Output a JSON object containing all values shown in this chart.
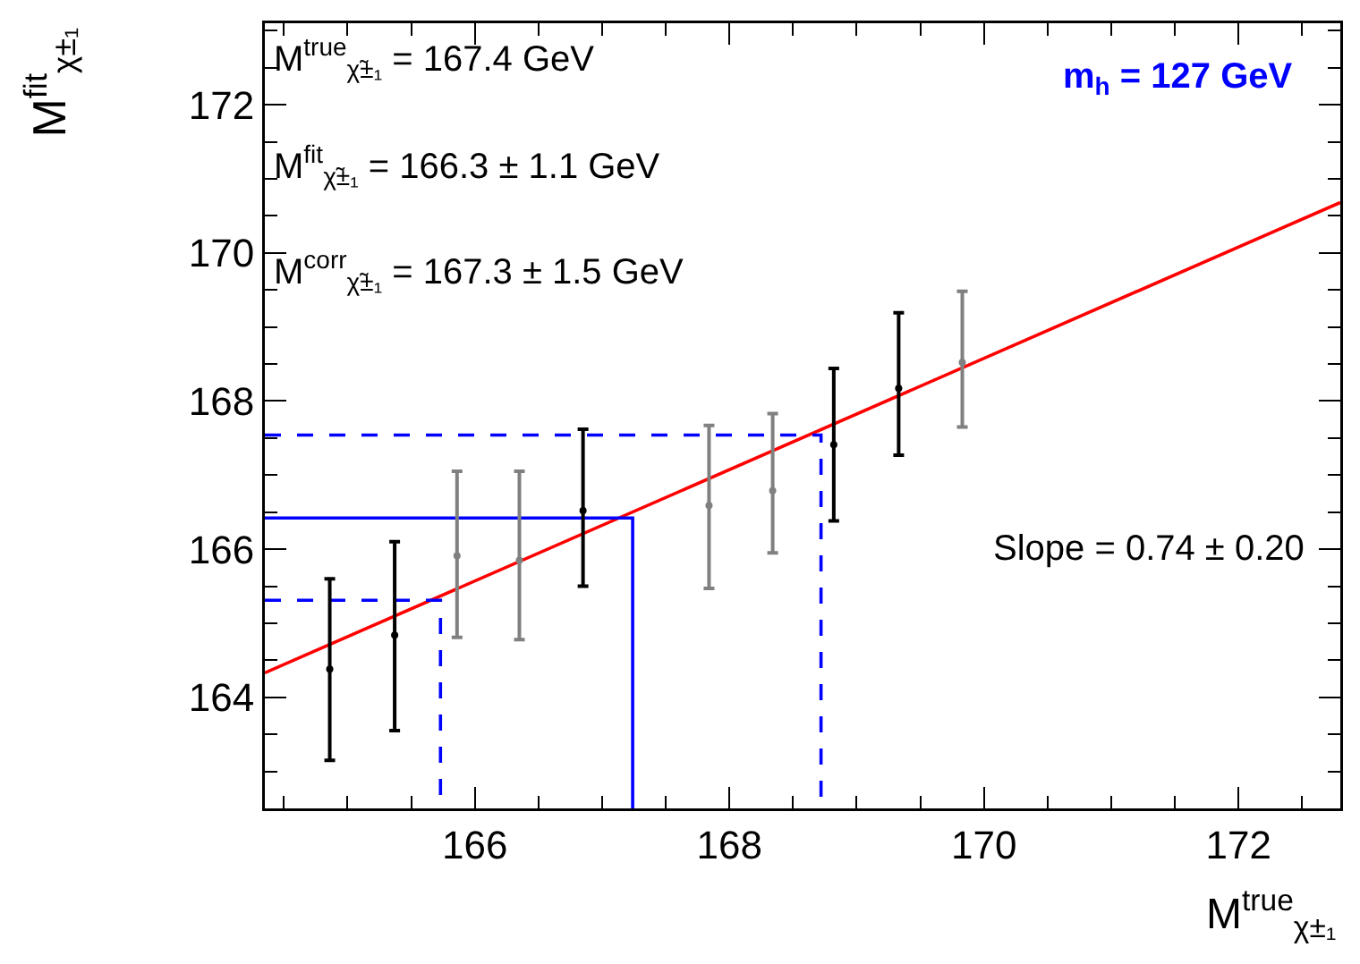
{
  "chart_data": {
    "type": "scatter",
    "xlabel": "M$^{true}$$_{χ±₁}$",
    "ylabel": "M$^{fit}$$_{χ±₁}$",
    "xlim": [
      164.35,
      172.8
    ],
    "ylim": [
      162.5,
      173.1
    ],
    "xticks": [
      166,
      168,
      170,
      172
    ],
    "yticks": [
      164,
      166,
      168,
      170,
      172
    ],
    "grid": false,
    "marker": "circle",
    "annotations": [
      "M$^{true}$$_{χ̃±₁}$ = 167.4 GeV",
      "M$^{fit}$$_{χ̃±₁}$ = 166.3 ± 1.1 GeV",
      "M$^{corr}$$_{χ̃±₁}$ = 167.3 ± 1.5 GeV",
      "m$_{h}$ = 127 GeV",
      "Slope = 0.74 ± 0.20"
    ],
    "series": [
      {
        "type": "line",
        "marker": "none",
        "color": "#ff0000",
        "line_style": "solid",
        "x": [
          164.35,
          172.8
        ],
        "values": [
          164.33,
          170.68
        ]
      },
      {
        "type": "line",
        "marker": "none",
        "color": "#0000ff",
        "line_style": "solid",
        "x": [
          164.35,
          167.24,
          167.24
        ],
        "values": [
          166.42,
          166.42,
          162.5
        ]
      },
      {
        "type": "line",
        "marker": "none",
        "color": "#0000ff",
        "line_style": "dashed",
        "x": [
          164.35,
          165.73,
          165.73
        ],
        "values": [
          165.31,
          165.31,
          162.5
        ]
      },
      {
        "type": "line",
        "marker": "none",
        "color": "#0000ff",
        "line_style": "dashed",
        "x": [
          164.35,
          168.72,
          168.72
        ],
        "values": [
          167.54,
          167.54,
          162.5
        ]
      },
      {
        "color": "#000000",
        "x": [
          164.86,
          165.37,
          166.85,
          168.82,
          169.33
        ],
        "values": [
          164.38,
          164.84,
          166.52,
          167.41,
          168.17
        ],
        "errors": [
          [
            163.15,
            165.6
          ],
          [
            163.55,
            166.1
          ],
          [
            165.5,
            167.62
          ],
          [
            166.38,
            168.44
          ],
          [
            167.27,
            169.19
          ]
        ]
      },
      {
        "color": "#808080",
        "x": [
          165.86,
          166.35,
          167.84,
          168.34,
          169.83
        ],
        "values": [
          165.91,
          165.85,
          166.59,
          166.79,
          168.52
        ],
        "errors": [
          [
            164.81,
            167.05
          ],
          [
            164.78,
            167.05
          ],
          [
            165.47,
            167.67
          ],
          [
            165.95,
            167.83
          ],
          [
            167.65,
            169.48
          ]
        ]
      }
    ]
  }
}
